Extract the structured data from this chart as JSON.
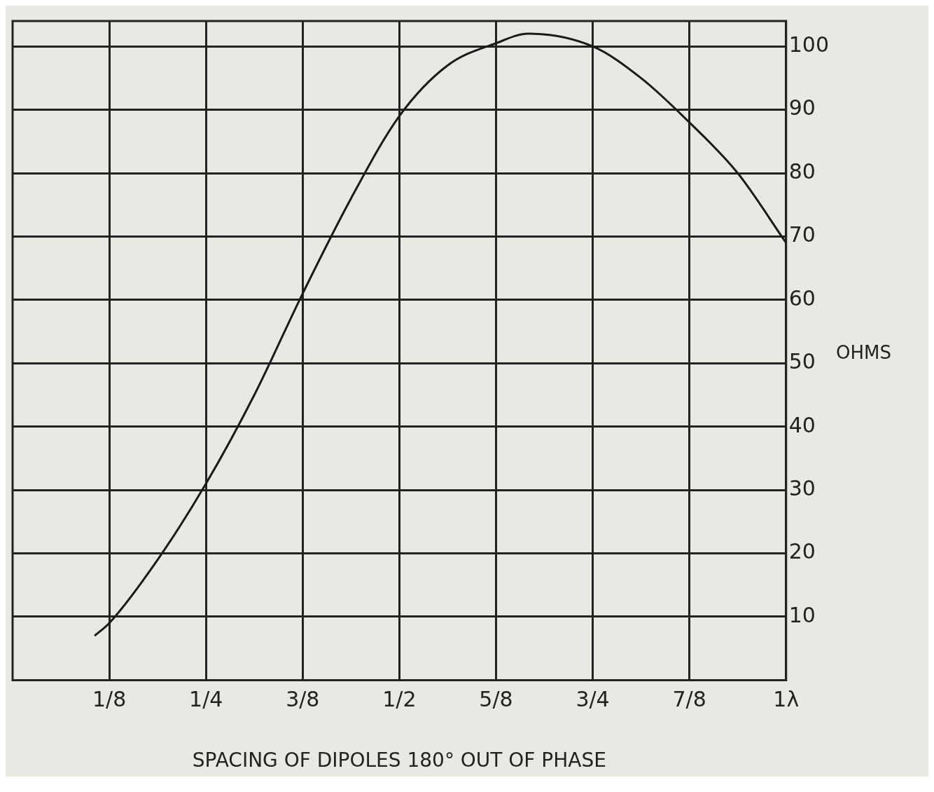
{
  "chart_data": {
    "type": "line",
    "xlabel": "SPACING OF DIPOLES 180° OUT OF PHASE",
    "ylabel": "OHMS",
    "series": [
      {
        "color": "#1a1a1a",
        "x": [
          0.106,
          0.125,
          0.1875,
          0.25,
          0.3125,
          0.375,
          0.4375,
          0.5,
          0.5625,
          0.625,
          0.667,
          0.75,
          0.8125,
          0.875,
          0.9375,
          1
        ],
        "values": [
          7,
          9,
          19,
          31,
          45,
          61,
          76,
          89,
          97,
          100.5,
          102,
          100,
          95,
          88,
          80,
          69
        ]
      }
    ],
    "xlim": [
      0,
      1
    ],
    "ylim": [
      0,
      104
    ],
    "xticks": [
      {
        "value": 0.125,
        "label": "1/8"
      },
      {
        "value": 0.25,
        "label": "1/4"
      },
      {
        "value": 0.375,
        "label": "3/8"
      },
      {
        "value": 0.5,
        "label": "1/2"
      },
      {
        "value": 0.625,
        "label": "5/8"
      },
      {
        "value": 0.75,
        "label": "3/4"
      },
      {
        "value": 0.875,
        "label": "7/8"
      },
      {
        "value": 1,
        "label": "1λ"
      }
    ],
    "yticks": [
      10,
      20,
      30,
      40,
      50,
      60,
      70,
      80,
      90,
      100
    ],
    "grid": true,
    "legend": false,
    "marker": "none",
    "line_style": "solid"
  }
}
